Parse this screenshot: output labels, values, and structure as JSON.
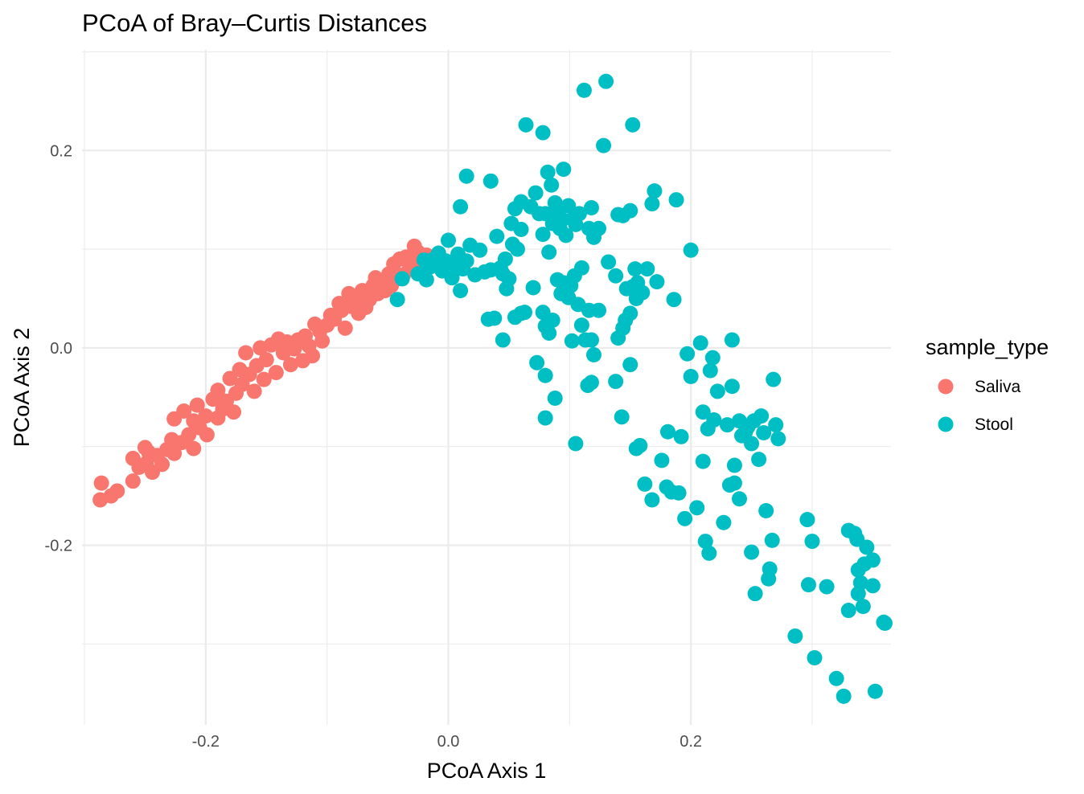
{
  "chart_data": {
    "type": "scatter",
    "title": "PCoA of Bray–Curtis Distances",
    "xlabel": "PCoA Axis 1",
    "ylabel": "PCoA Axis 2",
    "xlim": [
      -0.302,
      0.365
    ],
    "ylim": [
      -0.382,
      0.302
    ],
    "x_ticks": [
      {
        "value": -0.2,
        "label": "-0.2"
      },
      {
        "value": 0.0,
        "label": "0.0"
      },
      {
        "value": 0.2,
        "label": "0.2"
      }
    ],
    "y_ticks": [
      {
        "value": -0.2,
        "label": "-0.2"
      },
      {
        "value": 0.0,
        "label": "0.0"
      },
      {
        "value": 0.2,
        "label": "0.2"
      }
    ],
    "grid": true,
    "legend": {
      "title": "sample_type",
      "position": "right"
    },
    "series": [
      {
        "name": "Saliva",
        "color": "#F8766D",
        "points": [
          [
            -0.286,
            -0.137
          ],
          [
            -0.287,
            -0.154
          ],
          [
            -0.278,
            -0.15
          ],
          [
            -0.273,
            -0.145
          ],
          [
            -0.26,
            -0.135
          ],
          [
            -0.26,
            -0.112
          ],
          [
            -0.255,
            -0.121
          ],
          [
            -0.25,
            -0.101
          ],
          [
            -0.249,
            -0.117
          ],
          [
            -0.247,
            -0.106
          ],
          [
            -0.244,
            -0.126
          ],
          [
            -0.24,
            -0.109
          ],
          [
            -0.236,
            -0.118
          ],
          [
            -0.232,
            -0.103
          ],
          [
            -0.228,
            -0.093
          ],
          [
            -0.226,
            -0.107
          ],
          [
            -0.226,
            -0.072
          ],
          [
            -0.22,
            -0.096
          ],
          [
            -0.218,
            -0.064
          ],
          [
            -0.214,
            -0.088
          ],
          [
            -0.21,
            -0.074
          ],
          [
            -0.21,
            -0.102
          ],
          [
            -0.207,
            -0.058
          ],
          [
            -0.205,
            -0.081
          ],
          [
            -0.2,
            -0.069
          ],
          [
            -0.199,
            -0.088
          ],
          [
            -0.194,
            -0.052
          ],
          [
            -0.19,
            -0.071
          ],
          [
            -0.19,
            -0.043
          ],
          [
            -0.186,
            -0.062
          ],
          [
            -0.183,
            -0.054
          ],
          [
            -0.18,
            -0.031
          ],
          [
            -0.177,
            -0.065
          ],
          [
            -0.175,
            -0.046
          ],
          [
            -0.172,
            -0.022
          ],
          [
            -0.17,
            -0.037
          ],
          [
            -0.167,
            -0.005
          ],
          [
            -0.164,
            -0.027
          ],
          [
            -0.16,
            -0.044
          ],
          [
            -0.158,
            -0.018
          ],
          [
            -0.155,
            0.0
          ],
          [
            -0.152,
            -0.032
          ],
          [
            -0.15,
            -0.012
          ],
          [
            -0.146,
            0.003
          ],
          [
            -0.142,
            -0.025
          ],
          [
            -0.14,
            0.009
          ],
          [
            -0.136,
            -0.005
          ],
          [
            -0.133,
            0.006
          ],
          [
            -0.13,
            -0.017
          ],
          [
            -0.127,
            -0.001
          ],
          [
            -0.124,
            0.008
          ],
          [
            -0.12,
            -0.013
          ],
          [
            -0.118,
            0.012
          ],
          [
            -0.115,
            0.002
          ],
          [
            -0.112,
            -0.008
          ],
          [
            -0.11,
            0.024
          ],
          [
            -0.106,
            0.017
          ],
          [
            -0.104,
            0.007
          ],
          [
            -0.1,
            0.023
          ],
          [
            -0.097,
            0.033
          ],
          [
            -0.094,
            0.029
          ],
          [
            -0.09,
            0.045
          ],
          [
            -0.088,
            0.038
          ],
          [
            -0.085,
            0.02
          ],
          [
            -0.082,
            0.055
          ],
          [
            -0.08,
            0.042
          ],
          [
            -0.077,
            0.05
          ],
          [
            -0.074,
            0.035
          ],
          [
            -0.071,
            0.058
          ],
          [
            -0.068,
            0.041
          ],
          [
            -0.065,
            0.049
          ],
          [
            -0.062,
            0.063
          ],
          [
            -0.06,
            0.071
          ],
          [
            -0.058,
            0.055
          ],
          [
            -0.055,
            0.066
          ],
          [
            -0.052,
            0.058
          ],
          [
            -0.049,
            0.075
          ],
          [
            -0.047,
            0.063
          ],
          [
            -0.045,
            0.085
          ],
          [
            -0.042,
            0.07
          ],
          [
            -0.04,
            0.09
          ],
          [
            -0.037,
            0.074
          ],
          [
            -0.035,
            0.092
          ],
          [
            -0.032,
            0.08
          ],
          [
            -0.03,
            0.087
          ],
          [
            -0.028,
            0.103
          ],
          [
            -0.025,
            0.097
          ],
          [
            -0.022,
            0.084
          ],
          [
            -0.018,
            0.094
          ]
        ]
      },
      {
        "name": "Stool",
        "color": "#00BFC4",
        "points": [
          [
            -0.042,
            0.049
          ],
          [
            -0.038,
            0.07
          ],
          [
            -0.025,
            0.075
          ],
          [
            -0.02,
            0.089
          ],
          [
            -0.018,
            0.069
          ],
          [
            -0.015,
            0.082
          ],
          [
            -0.012,
            0.09
          ],
          [
            -0.008,
            0.096
          ],
          [
            -0.005,
            0.078
          ],
          [
            -0.002,
            0.088
          ],
          [
            0.0,
            0.109
          ],
          [
            0.003,
            0.071
          ],
          [
            0.006,
            0.084
          ],
          [
            0.008,
            0.095
          ],
          [
            0.01,
            0.058
          ],
          [
            0.012,
            0.08
          ],
          [
            0.015,
            0.088
          ],
          [
            0.018,
            0.104
          ],
          [
            0.022,
            0.074
          ],
          [
            0.026,
            0.099
          ],
          [
            0.03,
            0.077
          ],
          [
            0.035,
            0.079
          ],
          [
            0.04,
            0.113
          ],
          [
            0.043,
            0.081
          ],
          [
            0.047,
            0.09
          ],
          [
            0.05,
            0.07
          ],
          [
            0.053,
            0.105
          ],
          [
            0.057,
            0.1
          ],
          [
            0.06,
            0.035
          ],
          [
            0.063,
            0.036
          ],
          [
            0.045,
            0.008
          ],
          [
            0.055,
            0.031
          ],
          [
            0.06,
            0.12
          ],
          [
            0.045,
            0.075
          ],
          [
            0.048,
            0.06
          ],
          [
            0.038,
            0.03
          ],
          [
            0.033,
            0.029
          ],
          [
            0.01,
            0.143
          ],
          [
            0.015,
            0.174
          ],
          [
            0.035,
            0.169
          ],
          [
            0.052,
            0.126
          ],
          [
            0.055,
            0.141
          ],
          [
            0.06,
            0.148
          ],
          [
            0.064,
            0.226
          ],
          [
            0.068,
            0.143
          ],
          [
            0.072,
            0.157
          ],
          [
            0.075,
            0.136
          ],
          [
            0.078,
            0.115
          ],
          [
            0.078,
            0.218
          ],
          [
            0.08,
            0.136
          ],
          [
            0.082,
            0.178
          ],
          [
            0.083,
            0.097
          ],
          [
            0.085,
            0.165
          ],
          [
            0.086,
            0.126
          ],
          [
            0.088,
            0.147
          ],
          [
            0.09,
            0.139
          ],
          [
            0.092,
            0.121
          ],
          [
            0.094,
            0.13
          ],
          [
            0.095,
            0.181
          ],
          [
            0.097,
            0.114
          ],
          [
            0.099,
            0.144
          ],
          [
            0.103,
            0.131
          ],
          [
            0.105,
            0.125
          ],
          [
            0.108,
            0.136
          ],
          [
            0.11,
            0.081
          ],
          [
            0.112,
            0.261
          ],
          [
            0.116,
            0.121
          ],
          [
            0.118,
            0.142
          ],
          [
            0.12,
            0.112
          ],
          [
            0.124,
            0.121
          ],
          [
            0.128,
            0.205
          ],
          [
            0.13,
            0.27
          ],
          [
            0.132,
            0.087
          ],
          [
            0.138,
            0.073
          ],
          [
            0.14,
            0.135
          ],
          [
            0.144,
            0.134
          ],
          [
            0.147,
            0.06
          ],
          [
            0.15,
            0.139
          ],
          [
            0.152,
            0.226
          ],
          [
            0.154,
            0.08
          ],
          [
            0.156,
            0.066
          ],
          [
            0.16,
            0.056
          ],
          [
            0.164,
            0.08
          ],
          [
            0.168,
            0.146
          ],
          [
            0.17,
            0.159
          ],
          [
            0.172,
            0.067
          ],
          [
            0.186,
            0.049
          ],
          [
            0.188,
            0.15
          ],
          [
            0.2,
            0.099
          ],
          [
            0.07,
            0.061
          ],
          [
            0.078,
            0.036
          ],
          [
            0.08,
            0.022
          ],
          [
            0.083,
            0.015
          ],
          [
            0.086,
            0.028
          ],
          [
            0.09,
            0.069
          ],
          [
            0.093,
            0.055
          ],
          [
            0.095,
            0.066
          ],
          [
            0.099,
            0.051
          ],
          [
            0.101,
            0.063
          ],
          [
            0.104,
            0.073
          ],
          [
            0.107,
            0.044
          ],
          [
            0.11,
            0.023
          ],
          [
            0.113,
            0.008
          ],
          [
            0.116,
            0.038
          ],
          [
            0.118,
            0.008
          ],
          [
            0.12,
            -0.007
          ],
          [
            0.124,
            0.038
          ],
          [
            0.146,
            0.028
          ],
          [
            0.15,
            0.035
          ],
          [
            0.152,
            0.062
          ],
          [
            0.155,
            0.05
          ],
          [
            0.144,
            0.02
          ],
          [
            0.14,
            0.01
          ],
          [
            0.073,
            -0.015
          ],
          [
            0.08,
            -0.028
          ],
          [
            0.088,
            -0.051
          ],
          [
            0.08,
            -0.071
          ],
          [
            0.105,
            -0.097
          ],
          [
            0.115,
            -0.038
          ],
          [
            0.118,
            -0.035
          ],
          [
            0.102,
            0.007
          ],
          [
            0.138,
            -0.034
          ],
          [
            0.143,
            -0.07
          ],
          [
            0.15,
            -0.017
          ],
          [
            0.155,
            -0.102
          ],
          [
            0.158,
            -0.099
          ],
          [
            0.162,
            -0.138
          ],
          [
            0.168,
            -0.154
          ],
          [
            0.176,
            -0.114
          ],
          [
            0.18,
            -0.141
          ],
          [
            0.181,
            -0.085
          ],
          [
            0.184,
            -0.146
          ],
          [
            0.19,
            -0.147
          ],
          [
            0.192,
            -0.09
          ],
          [
            0.195,
            -0.173
          ],
          [
            0.197,
            -0.006
          ],
          [
            0.2,
            -0.029
          ],
          [
            0.205,
            -0.162
          ],
          [
            0.208,
            0.005
          ],
          [
            0.21,
            -0.065
          ],
          [
            0.21,
            -0.115
          ],
          [
            0.212,
            -0.196
          ],
          [
            0.214,
            -0.082
          ],
          [
            0.215,
            -0.208
          ],
          [
            0.216,
            -0.023
          ],
          [
            0.218,
            -0.01
          ],
          [
            0.219,
            -0.073
          ],
          [
            0.222,
            -0.044
          ],
          [
            0.227,
            -0.177
          ],
          [
            0.23,
            -0.078
          ],
          [
            0.232,
            -0.139
          ],
          [
            0.234,
            -0.039
          ],
          [
            0.234,
            0.008
          ],
          [
            0.236,
            -0.119
          ],
          [
            0.236,
            -0.137
          ],
          [
            0.24,
            -0.074
          ],
          [
            0.24,
            -0.153
          ],
          [
            0.242,
            -0.089
          ],
          [
            0.245,
            -0.085
          ],
          [
            0.247,
            -0.08
          ],
          [
            0.25,
            -0.097
          ],
          [
            0.25,
            -0.207
          ],
          [
            0.252,
            -0.074
          ],
          [
            0.253,
            -0.249
          ],
          [
            0.256,
            -0.113
          ],
          [
            0.258,
            -0.069
          ],
          [
            0.26,
            -0.086
          ],
          [
            0.262,
            -0.165
          ],
          [
            0.264,
            -0.234
          ],
          [
            0.265,
            -0.224
          ],
          [
            0.267,
            -0.195
          ],
          [
            0.268,
            -0.032
          ],
          [
            0.27,
            -0.078
          ],
          [
            0.272,
            -0.092
          ],
          [
            0.286,
            -0.292
          ],
          [
            0.296,
            -0.174
          ],
          [
            0.297,
            -0.24
          ],
          [
            0.302,
            -0.314
          ],
          [
            0.312,
            -0.242
          ],
          [
            0.326,
            -0.353
          ],
          [
            0.3,
            -0.196
          ],
          [
            0.33,
            -0.266
          ],
          [
            0.335,
            -0.188
          ],
          [
            0.337,
            -0.194
          ],
          [
            0.338,
            -0.225
          ],
          [
            0.34,
            -0.238
          ],
          [
            0.343,
            -0.219
          ],
          [
            0.345,
            -0.202
          ],
          [
            0.35,
            -0.215
          ],
          [
            0.33,
            -0.185
          ],
          [
            0.338,
            -0.249
          ],
          [
            0.342,
            -0.262
          ],
          [
            0.359,
            -0.278
          ],
          [
            0.36,
            -0.279
          ],
          [
            0.35,
            -0.241
          ],
          [
            0.32,
            -0.335
          ],
          [
            0.352,
            -0.348
          ]
        ]
      }
    ]
  }
}
